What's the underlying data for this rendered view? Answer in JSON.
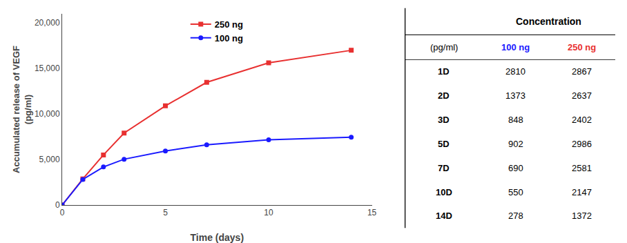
{
  "chart_data": {
    "type": "line",
    "x": [
      0,
      1,
      2,
      3,
      5,
      7,
      10,
      14
    ],
    "series": [
      {
        "name": "250 ng",
        "color": "#e83030",
        "marker": "square",
        "values": [
          0,
          2867,
          5504,
          7906,
          10892,
          13473,
          15620,
          16992
        ]
      },
      {
        "name": "100 ng",
        "color": "#1a1aff",
        "marker": "circle",
        "values": [
          0,
          2810,
          4183,
          5031,
          5933,
          6623,
          7173,
          7451
        ]
      }
    ],
    "x_label": "Time (days)",
    "y_label": "Accumulated release of VEGF\n(pg/ml)",
    "xlim": [
      0,
      15
    ],
    "xticks": [
      0,
      5,
      10,
      15
    ],
    "ylim": [
      0,
      21000
    ],
    "yticks": [
      0,
      {
        "value": 5000,
        "label": "5,000"
      },
      {
        "value": 10000,
        "label": "10,000"
      },
      {
        "value": 15000,
        "label": "15,000"
      },
      {
        "value": 20000,
        "label": "20,000"
      }
    ],
    "grid": false,
    "legend": "upper center",
    "table": {
      "header": "Concentration",
      "columns": [
        "(pg/ml)",
        "100 ng",
        "250 ng"
      ],
      "rows": [
        {
          "label": "1D",
          "values": [
            2810,
            2867
          ]
        },
        {
          "label": "2D",
          "values": [
            1373,
            2637
          ]
        },
        {
          "label": "3D",
          "values": [
            848,
            2402
          ]
        },
        {
          "label": "5D",
          "values": [
            902,
            2986
          ]
        },
        {
          "label": "7D",
          "values": [
            690,
            2581
          ]
        },
        {
          "label": "10D",
          "values": [
            550,
            2147
          ]
        },
        {
          "label": "14D",
          "values": [
            278,
            1372
          ]
        }
      ]
    }
  }
}
